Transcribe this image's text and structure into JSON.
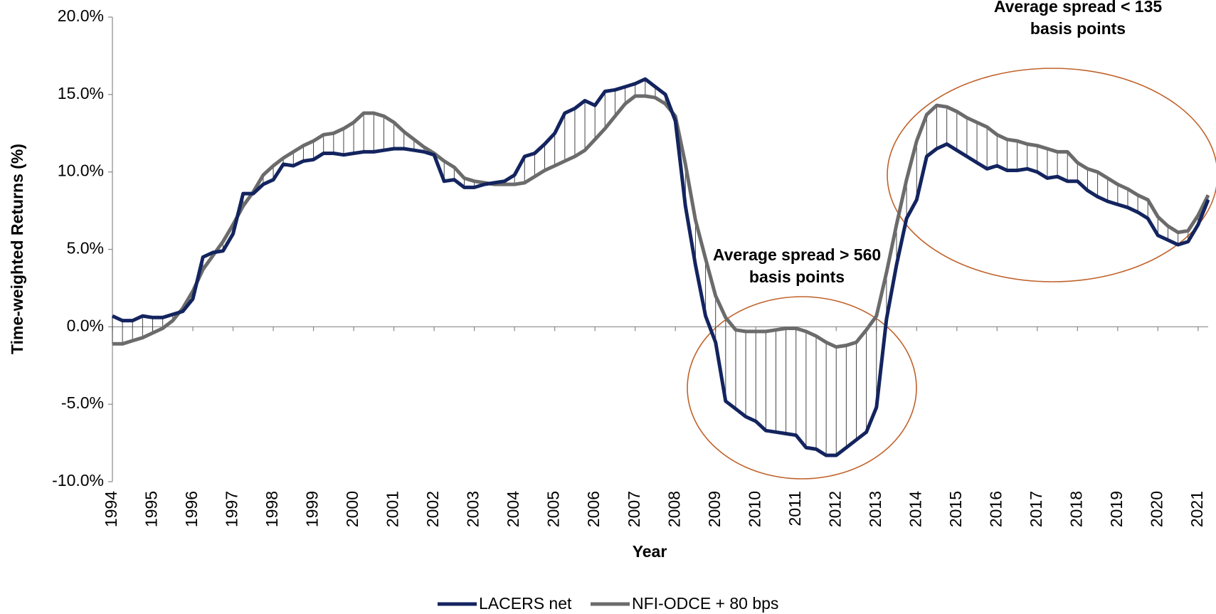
{
  "chart_data": {
    "type": "line",
    "xlabel": "Year",
    "ylabel": "Time-weighted Returns (%)",
    "categories": [
      "1994",
      null,
      null,
      null,
      "1995",
      null,
      null,
      null,
      "1996",
      null,
      null,
      null,
      "1997",
      null,
      null,
      null,
      "1998",
      null,
      null,
      null,
      "1999",
      null,
      null,
      null,
      "2000",
      null,
      null,
      null,
      "2001",
      null,
      null,
      null,
      "2002",
      null,
      null,
      null,
      "2003",
      null,
      null,
      null,
      "2004",
      null,
      null,
      null,
      "2005",
      null,
      null,
      null,
      "2006",
      null,
      null,
      null,
      "2007",
      null,
      null,
      null,
      "2008",
      null,
      null,
      null,
      "2009",
      null,
      null,
      null,
      "2010",
      null,
      null,
      null,
      "2011",
      null,
      null,
      null,
      "2012",
      null,
      null,
      null,
      "2013",
      null,
      null,
      null,
      "2014",
      null,
      null,
      null,
      "2015",
      null,
      null,
      null,
      "2016",
      null,
      null,
      null,
      "2017",
      null,
      null,
      null,
      "2018",
      null,
      null,
      null,
      "2019",
      null,
      null,
      null,
      "2020",
      null,
      null,
      null,
      "2021",
      null
    ],
    "series": [
      {
        "name": "LACERS net",
        "color": "#13245f",
        "values": [
          0.7,
          0.4,
          0.4,
          0.7,
          0.6,
          0.6,
          0.8,
          1.0,
          1.8,
          4.5,
          4.8,
          4.9,
          6.0,
          8.6,
          8.6,
          9.2,
          9.5,
          10.5,
          10.4,
          10.7,
          10.8,
          11.2,
          11.2,
          11.1,
          11.2,
          11.3,
          11.3,
          11.4,
          11.5,
          11.5,
          11.4,
          11.3,
          11.1,
          9.4,
          9.5,
          9.0,
          9.0,
          9.2,
          9.3,
          9.4,
          9.8,
          11.0,
          11.2,
          11.8,
          12.5,
          13.8,
          14.1,
          14.6,
          14.3,
          15.2,
          15.3,
          15.5,
          15.7,
          16.0,
          15.5,
          15.0,
          13.3,
          7.8,
          4.0,
          0.7,
          -1.0,
          -4.8,
          -5.3,
          -5.8,
          -6.1,
          -6.7,
          -6.8,
          -6.9,
          -7.0,
          -7.8,
          -7.9,
          -8.3,
          -8.3,
          -7.8,
          -7.3,
          -6.8,
          -5.2,
          0.5,
          4.0,
          7.0,
          8.2,
          11.0,
          11.5,
          11.8,
          11.4,
          11.0,
          10.6,
          10.2,
          10.4,
          10.1,
          10.1,
          10.2,
          10.0,
          9.6,
          9.7,
          9.4,
          9.4,
          8.8,
          8.4,
          8.1,
          7.9,
          7.7,
          7.4,
          7.0,
          5.9,
          5.6,
          5.3,
          5.5,
          6.6,
          8.2
        ]
      },
      {
        "name": "NFI-ODCE + 80 bps",
        "color": "#6b6b6b",
        "values": [
          -1.1,
          -1.1,
          -0.9,
          -0.7,
          -0.4,
          -0.1,
          0.4,
          1.2,
          2.3,
          3.7,
          4.6,
          5.5,
          6.6,
          7.8,
          8.7,
          9.8,
          10.4,
          10.9,
          11.3,
          11.7,
          12.0,
          12.4,
          12.5,
          12.8,
          13.2,
          13.8,
          13.8,
          13.6,
          13.2,
          12.6,
          12.1,
          11.6,
          11.2,
          10.7,
          10.3,
          9.6,
          9.4,
          9.3,
          9.2,
          9.2,
          9.2,
          9.3,
          9.7,
          10.1,
          10.4,
          10.7,
          11.0,
          11.4,
          12.1,
          12.8,
          13.6,
          14.4,
          14.9,
          14.9,
          14.8,
          14.4,
          13.6,
          10.5,
          6.9,
          4.4,
          2.0,
          0.6,
          -0.2,
          -0.3,
          -0.3,
          -0.3,
          -0.2,
          -0.1,
          -0.1,
          -0.3,
          -0.6,
          -1.0,
          -1.3,
          -1.2,
          -1.0,
          -0.2,
          0.7,
          3.5,
          6.6,
          9.5,
          12.0,
          13.7,
          14.3,
          14.2,
          13.9,
          13.5,
          13.2,
          12.9,
          12.4,
          12.1,
          12.0,
          11.8,
          11.7,
          11.5,
          11.3,
          11.3,
          10.6,
          10.2,
          10.0,
          9.6,
          9.2,
          8.9,
          8.5,
          8.2,
          7.1,
          6.5,
          6.1,
          6.2,
          7.2,
          8.5
        ]
      }
    ],
    "ylim": [
      -10,
      20
    ],
    "yticks": [
      {
        "value": -10,
        "label": "-10.0%"
      },
      {
        "value": -5,
        "label": "-5.0%"
      },
      {
        "value": 0,
        "label": "0.0%"
      },
      {
        "value": 5,
        "label": "5.0%"
      },
      {
        "value": 10,
        "label": "10.0%"
      },
      {
        "value": 15,
        "label": "15.0%"
      },
      {
        "value": 20,
        "label": "20.0%"
      }
    ],
    "annotations": [
      {
        "lines": [
          "Average spread > 560",
          "basis points"
        ]
      },
      {
        "lines": [
          "Average spread < 135",
          "basis points"
        ]
      }
    ],
    "legend": "bottom"
  }
}
